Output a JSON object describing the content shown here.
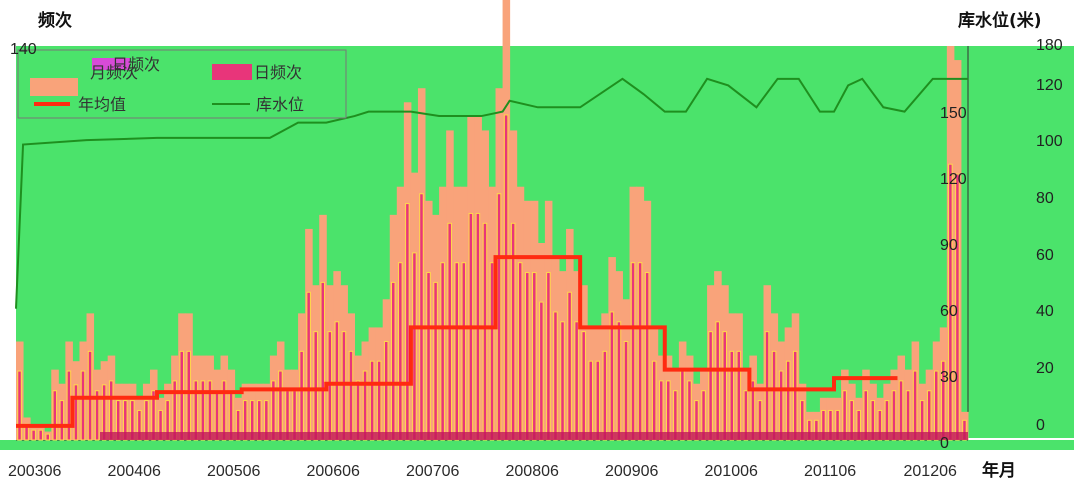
{
  "colors": {
    "plot_bg": "#4be36b",
    "monthly_bar": "#f9a37a",
    "daily_bar": "#e8357a",
    "daily_glow": "#ffd94a",
    "annual_mean": "#ff2a10",
    "reservoir": "#1f8f1f",
    "axis_text": "#222222"
  },
  "chart_data": {
    "type": "bar",
    "left_axis": {
      "title": "频次",
      "range": [
        0,
        140
      ],
      "ticks": [
        "140"
      ]
    },
    "right_axis": {
      "title": "库水位(米)",
      "inner_ticks": [
        "150",
        "120",
        "90",
        "60",
        "30",
        "0"
      ],
      "outer_ticks": [
        "180",
        "120",
        "100",
        "80",
        "60",
        "40",
        "20",
        "0"
      ]
    },
    "x_axis": {
      "title": "年月",
      "tick_labels": [
        "200306",
        "200406",
        "200506",
        "200606",
        "200706",
        "200806",
        "200906",
        "201006",
        "201106",
        "201206"
      ]
    },
    "legend": {
      "placement": "top-left",
      "entries": [
        "日频次",
        "月频次",
        "日频次",
        "年均值",
        "库水位"
      ]
    },
    "series": [
      {
        "name": "月频次",
        "type": "bar",
        "values": [
          35,
          8,
          5,
          5,
          3,
          25,
          20,
          35,
          28,
          35,
          45,
          25,
          28,
          30,
          20,
          20,
          20,
          15,
          20,
          25,
          15,
          20,
          30,
          45,
          45,
          30,
          30,
          30,
          25,
          30,
          25,
          15,
          20,
          20,
          20,
          20,
          30,
          35,
          25,
          25,
          45,
          75,
          55,
          80,
          55,
          60,
          55,
          45,
          30,
          35,
          40,
          40,
          50,
          80,
          90,
          120,
          95,
          125,
          85,
          80,
          90,
          110,
          90,
          90,
          115,
          115,
          110,
          90,
          125,
          165,
          110,
          90,
          85,
          85,
          70,
          85,
          65,
          60,
          75,
          60,
          55,
          40,
          40,
          45,
          65,
          60,
          50,
          90,
          90,
          85,
          40,
          30,
          30,
          25,
          35,
          30,
          20,
          25,
          55,
          60,
          55,
          45,
          45,
          25,
          30,
          20,
          55,
          45,
          35,
          40,
          45,
          20,
          10,
          10,
          15,
          15,
          15,
          25,
          20,
          15,
          25,
          20,
          15,
          20,
          25,
          30,
          25,
          35,
          20,
          25,
          35,
          40,
          140,
          135,
          10
        ]
      },
      {
        "name": "年均值",
        "type": "step",
        "x": [
          0,
          8,
          20,
          32,
          44,
          56,
          68,
          80,
          92,
          104,
          116,
          125
        ],
        "values": [
          5,
          15,
          17,
          18,
          20,
          40,
          65,
          40,
          25,
          18,
          22,
          22
        ]
      },
      {
        "name": "库水位",
        "type": "line",
        "x": [
          0,
          1,
          10,
          20,
          30,
          36,
          40,
          44,
          48,
          50,
          53,
          56,
          60,
          66,
          69,
          70,
          74,
          80,
          86,
          89,
          92,
          95,
          98,
          101,
          105,
          108,
          111,
          114,
          116,
          118,
          120,
          123,
          126,
          130,
          135
        ],
        "values": [
          60,
          135,
          137,
          138,
          138,
          138,
          145,
          145,
          148,
          150,
          150,
          150,
          148,
          148,
          150,
          155,
          152,
          152,
          165,
          158,
          150,
          150,
          165,
          162,
          152,
          165,
          165,
          150,
          150,
          162,
          165,
          152,
          150,
          165,
          165
        ]
      }
    ]
  }
}
